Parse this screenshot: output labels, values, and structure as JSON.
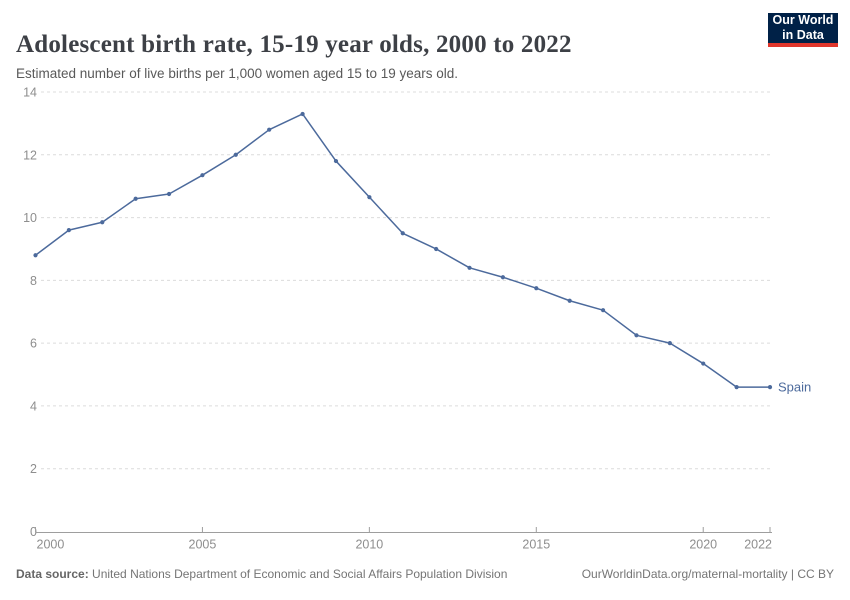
{
  "chart_data": {
    "type": "line",
    "title": "Adolescent birth rate, 15-19 year olds, 2000 to 2022",
    "subtitle": "Estimated number of live births per 1,000 women aged 15 to 19 years old.",
    "x": [
      2000,
      2001,
      2002,
      2003,
      2004,
      2005,
      2006,
      2007,
      2008,
      2009,
      2010,
      2011,
      2012,
      2013,
      2014,
      2015,
      2016,
      2017,
      2018,
      2019,
      2020,
      2021,
      2022
    ],
    "series": [
      {
        "name": "Spain",
        "values": [
          8.8,
          9.6,
          9.85,
          10.6,
          10.75,
          11.35,
          12.0,
          12.8,
          13.3,
          11.8,
          10.65,
          9.5,
          9.0,
          8.4,
          8.1,
          7.75,
          7.35,
          7.05,
          6.25,
          6.0,
          5.35,
          4.6,
          4.6
        ]
      }
    ],
    "end_label": "Spain",
    "xlabel": "",
    "ylabel": "",
    "xlim": [
      2000,
      2022
    ],
    "ylim": [
      0,
      14
    ],
    "x_ticks": [
      2000,
      2005,
      2010,
      2015,
      2020,
      2022
    ],
    "y_ticks": [
      0,
      2,
      4,
      6,
      8,
      10,
      12,
      14
    ],
    "grid": "horizontal-dashed",
    "legend_position": "line-end"
  },
  "logo": {
    "line1": "Our World",
    "line2": "in Data"
  },
  "footer": {
    "source_label": "Data source:",
    "source_text": "United Nations Department of Economic and Social Affairs Population Division",
    "citation": "OurWorldinData.org/maternal-mortality | CC BY"
  },
  "colors": {
    "line": "#4C6A9C",
    "grid": "#DCDCDC",
    "axis": "#9E9E9E",
    "tick_label": "#8E8E8E",
    "logo_bg": "#002147",
    "logo_accent": "#E0362C"
  }
}
